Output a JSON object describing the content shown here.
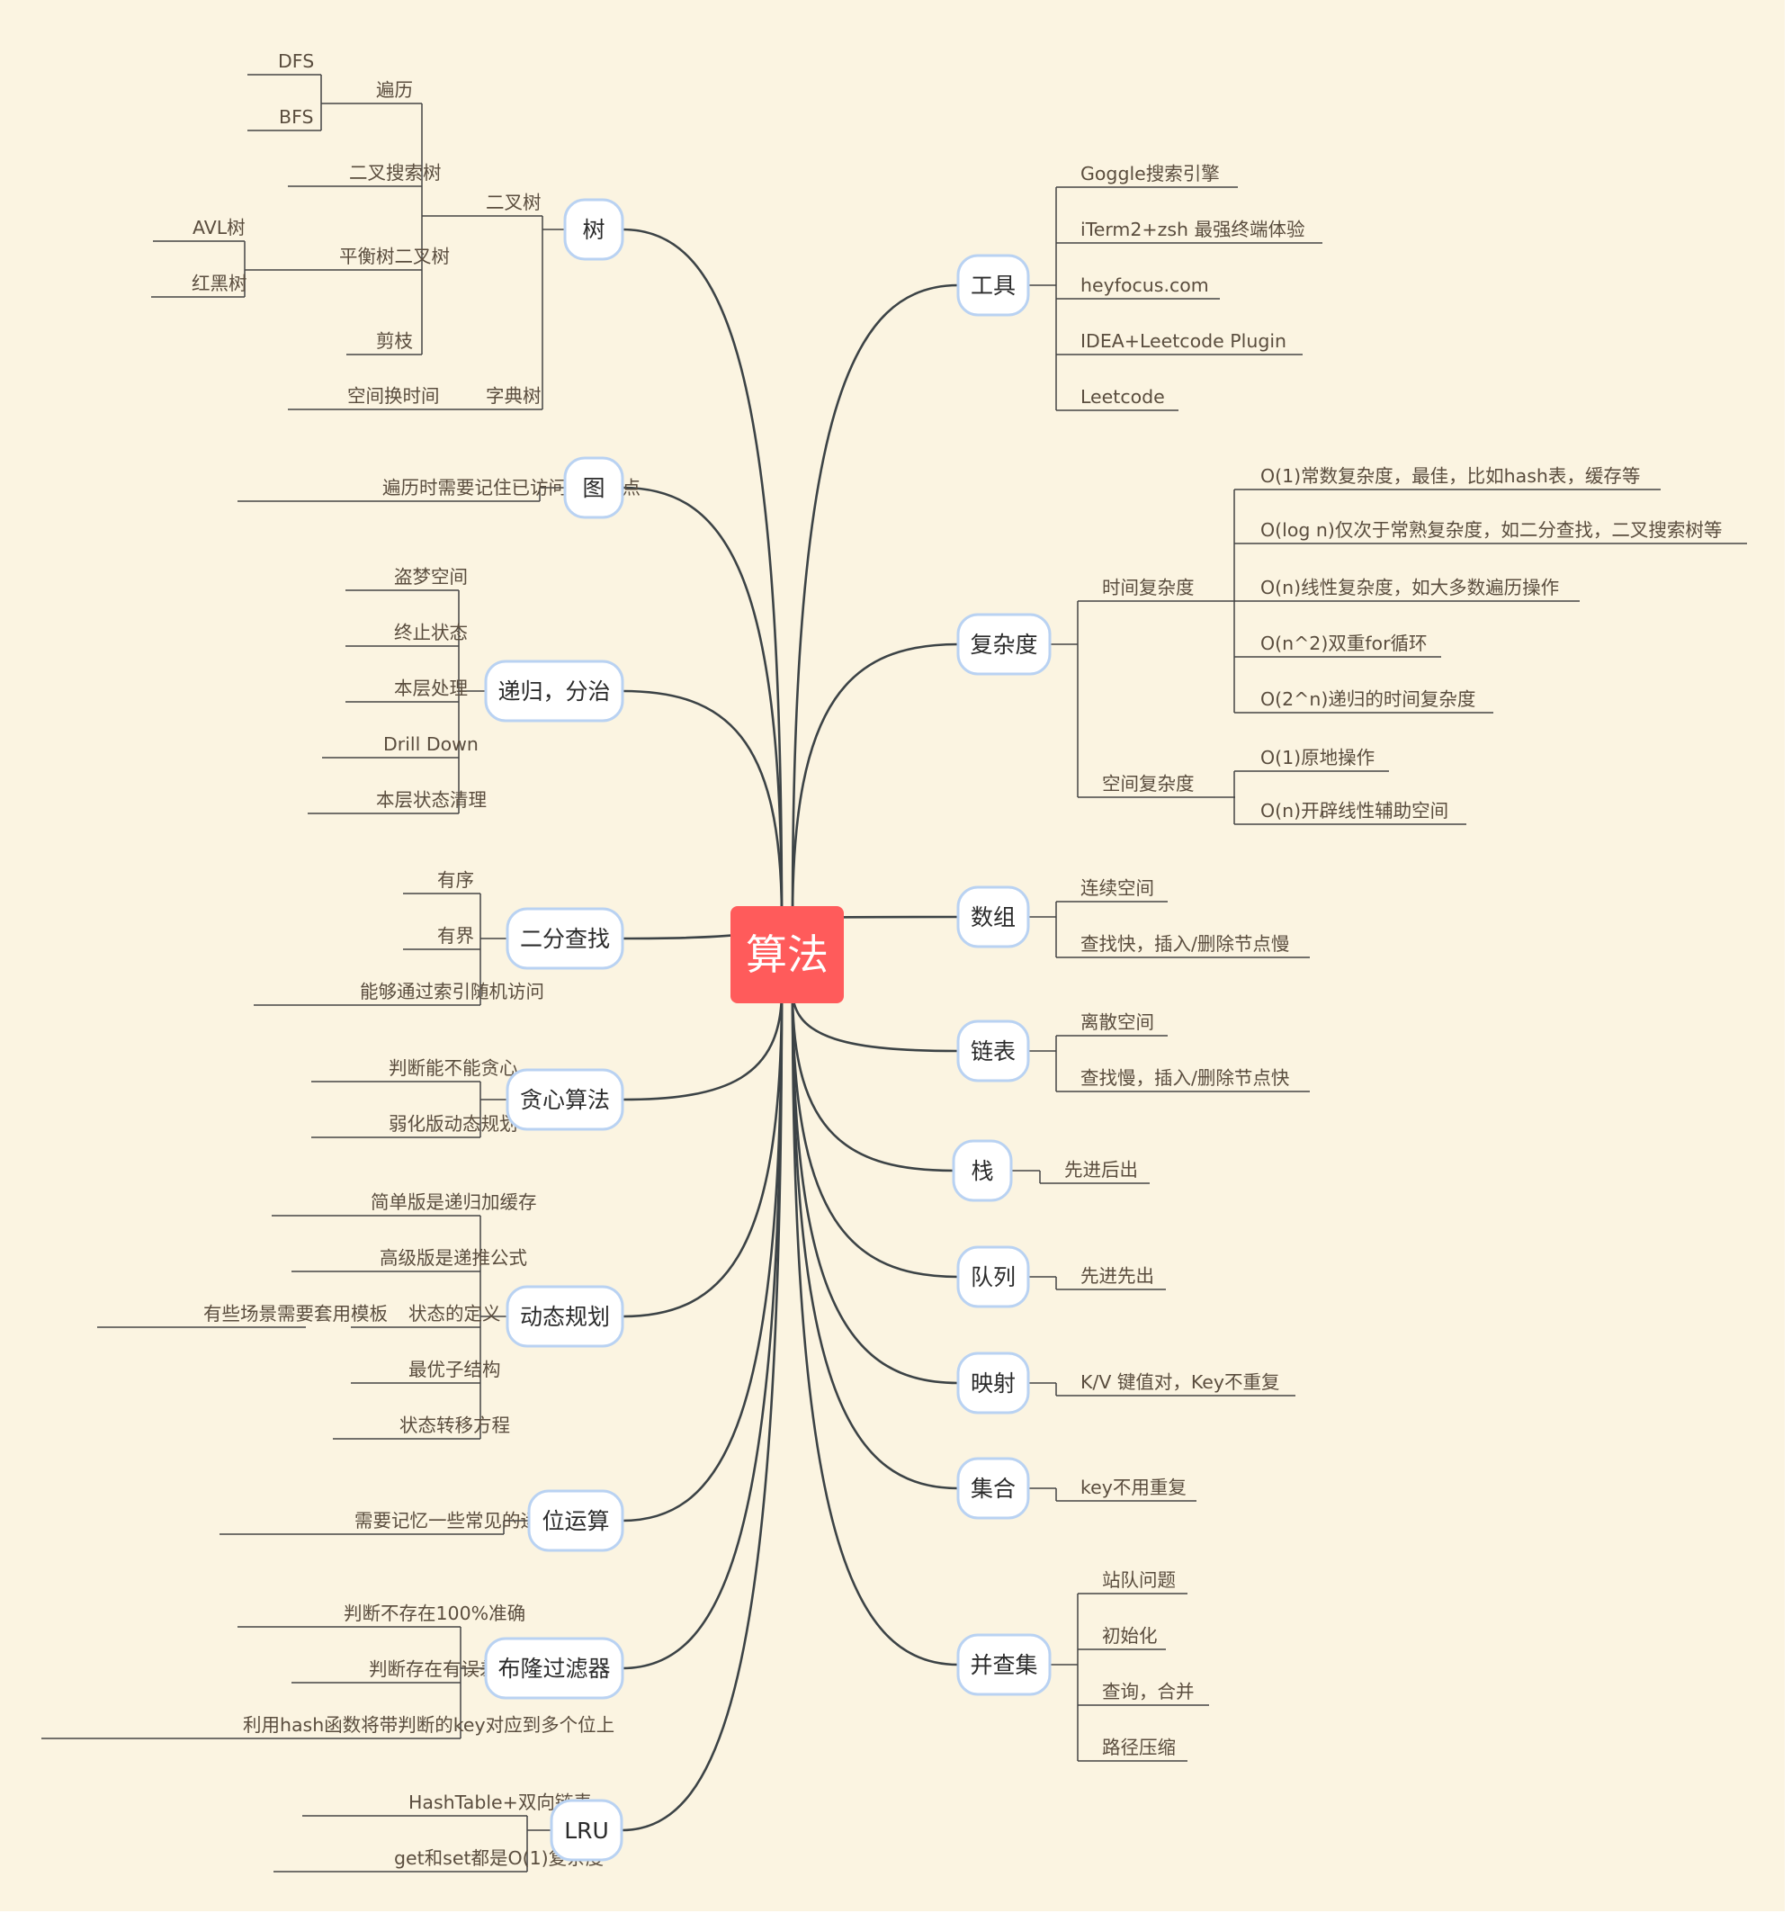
{
  "colors": {
    "background": "#fbf4e1",
    "root": "#ff5b5b",
    "topic_border": "#b9d2f2",
    "branch": "#3c4346",
    "leaf_text": "#5a4d3e"
  },
  "root": {
    "label": "算法"
  },
  "left_topics": [
    {
      "label": "树",
      "children": [
        {
          "label": "二叉树",
          "children": [
            {
              "label": "遍历",
              "children": [
                {
                  "label": "DFS"
                },
                {
                  "label": "BFS"
                }
              ]
            },
            {
              "label": "二叉搜索树"
            },
            {
              "label": "平衡树二叉树",
              "children": [
                {
                  "label": "AVL树"
                },
                {
                  "label": "红黑树"
                }
              ]
            },
            {
              "label": "剪枝"
            }
          ]
        },
        {
          "label": "字典树",
          "children": [
            {
              "label": "空间换时间"
            }
          ]
        }
      ]
    },
    {
      "label": "图",
      "children": [
        {
          "label": "遍历时需要记住已访问过的节点"
        }
      ]
    },
    {
      "label": "递归，分治",
      "children": [
        {
          "label": "盗梦空间"
        },
        {
          "label": "终止状态"
        },
        {
          "label": "本层处理"
        },
        {
          "label": "Drill Down"
        },
        {
          "label": "本层状态清理"
        }
      ]
    },
    {
      "label": "二分查找",
      "children": [
        {
          "label": "有序"
        },
        {
          "label": "有界"
        },
        {
          "label": "能够通过索引随机访问"
        }
      ]
    },
    {
      "label": "贪心算法",
      "children": [
        {
          "label": "判断能不能贪心"
        },
        {
          "label": "弱化版动态规划"
        }
      ]
    },
    {
      "label": "动态规划",
      "children": [
        {
          "label": "简单版是递归加缓存"
        },
        {
          "label": "高级版是递推公式"
        },
        {
          "label": "状态的定义",
          "children": [
            {
              "label": "有些场景需要套用模板"
            }
          ]
        },
        {
          "label": "最优子结构"
        },
        {
          "label": "状态转移方程"
        }
      ]
    },
    {
      "label": "位运算",
      "children": [
        {
          "label": "需要记忆一些常见的运算公式"
        }
      ]
    },
    {
      "label": "布隆过滤器",
      "children": [
        {
          "label": "判断不存在100%准确"
        },
        {
          "label": "判断存在有误差"
        },
        {
          "label": "利用hash函数将带判断的key对应到多个位上"
        }
      ]
    },
    {
      "label": "LRU",
      "children": [
        {
          "label": "HashTable+双向链表"
        },
        {
          "label": "get和set都是O(1)复杂度"
        }
      ]
    }
  ],
  "right_topics": [
    {
      "label": "工具",
      "children": [
        {
          "label": "Goggle搜索引擎"
        },
        {
          "label": "iTerm2+zsh 最强终端体验"
        },
        {
          "label": "heyfocus.com"
        },
        {
          "label": "IDEA+Leetcode Plugin"
        },
        {
          "label": "Leetcode"
        }
      ]
    },
    {
      "label": "复杂度",
      "children": [
        {
          "label": "时间复杂度",
          "children": [
            {
              "label": "O(1)常数复杂度，最佳，比如hash表，缓存等"
            },
            {
              "label": "O(log n)仅次于常熟复杂度，如二分查找，二叉搜索树等"
            },
            {
              "label": "O(n)线性复杂度，如大多数遍历操作"
            },
            {
              "label": "O(n^2)双重for循环"
            },
            {
              "label": "O(2^n)递归的时间复杂度"
            }
          ]
        },
        {
          "label": "空间复杂度",
          "children": [
            {
              "label": "O(1)原地操作"
            },
            {
              "label": "O(n)开辟线性辅助空间"
            }
          ]
        }
      ]
    },
    {
      "label": "数组",
      "children": [
        {
          "label": "连续空间"
        },
        {
          "label": "查找快，插入/删除节点慢"
        }
      ]
    },
    {
      "label": "链表",
      "children": [
        {
          "label": "离散空间"
        },
        {
          "label": "查找慢，插入/删除节点快"
        }
      ]
    },
    {
      "label": "栈",
      "children": [
        {
          "label": "先进后出"
        }
      ]
    },
    {
      "label": "队列",
      "children": [
        {
          "label": "先进先出"
        }
      ]
    },
    {
      "label": "映射",
      "children": [
        {
          "label": "K/V 键值对，Key不重复"
        }
      ]
    },
    {
      "label": "集合",
      "children": [
        {
          "label": "key不用重复"
        }
      ]
    },
    {
      "label": "并查集",
      "children": [
        {
          "label": "站队问题"
        },
        {
          "label": "初始化"
        },
        {
          "label": "查询，合并"
        },
        {
          "label": "路径压缩"
        }
      ]
    }
  ]
}
